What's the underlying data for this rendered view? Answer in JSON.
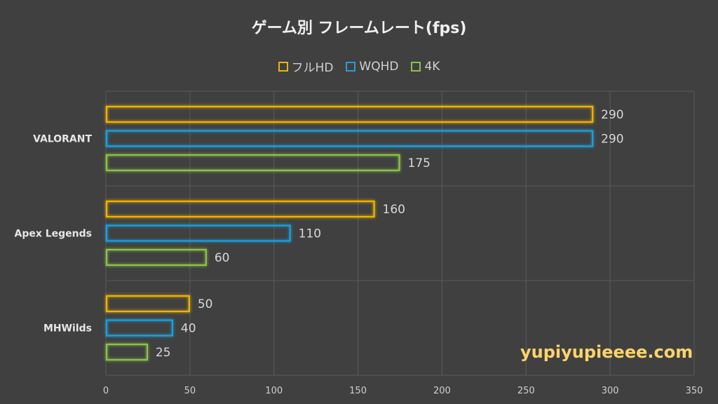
{
  "chart_data": {
    "type": "bar",
    "orientation": "horizontal",
    "title": "ゲーム別 フレームレート(fps)",
    "categories": [
      "VALORANT",
      "Apex Legends",
      "MHWilds"
    ],
    "series": [
      {
        "name": "フルHD",
        "color": "#f0b400",
        "values": [
          290,
          160,
          50
        ]
      },
      {
        "name": "WQHD",
        "color": "#1ea0dc",
        "values": [
          290,
          110,
          40
        ]
      },
      {
        "name": "4K",
        "color": "#8cc34a",
        "values": [
          175,
          60,
          25
        ]
      }
    ],
    "xlim": [
      0,
      350
    ],
    "xticks": [
      0,
      50,
      100,
      150,
      200,
      250,
      300,
      350
    ],
    "grid": true,
    "legend": "top",
    "data_labels": true,
    "style": "outlined glowing bars"
  },
  "watermark": "yupiyupieeee.com"
}
